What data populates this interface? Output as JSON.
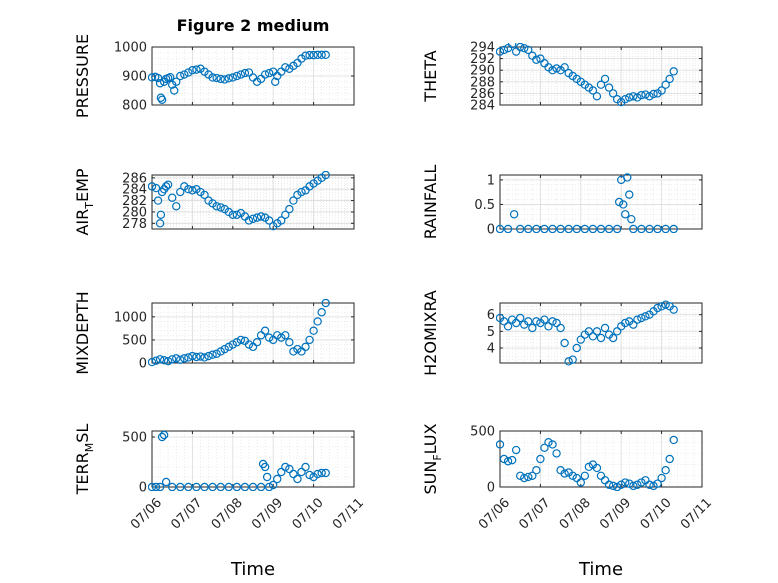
{
  "figure": {
    "title": "Figure 2 medium",
    "marker_color": "#0072bd"
  },
  "x_ticks": [
    "07/06",
    "07/07",
    "07/08",
    "07/09",
    "07/10",
    "07/11"
  ],
  "chart_data": [
    {
      "type": "scatter",
      "ylabel": "PRESSURE",
      "xlabel": "",
      "title": "Figure 2 medium",
      "xlim": [
        0,
        5
      ],
      "ylim": [
        800,
        1000
      ],
      "yticks": [
        800,
        900,
        1000
      ],
      "grid": true,
      "x": [
        0,
        0.08,
        0.15,
        0.2,
        0.22,
        0.25,
        0.3,
        0.35,
        0.4,
        0.45,
        0.5,
        0.55,
        0.6,
        0.7,
        0.8,
        0.9,
        1.0,
        1.1,
        1.2,
        1.3,
        1.4,
        1.5,
        1.6,
        1.7,
        1.8,
        1.9,
        2.0,
        2.1,
        2.2,
        2.3,
        2.4,
        2.5,
        2.6,
        2.7,
        2.8,
        2.9,
        3.0,
        3.05,
        3.1,
        3.2,
        3.3,
        3.4,
        3.5,
        3.6,
        3.7,
        3.8,
        3.9,
        4.0,
        4.1,
        4.2,
        4.3
      ],
      "y": [
        895,
        897,
        893,
        875,
        825,
        818,
        880,
        890,
        893,
        896,
        870,
        850,
        880,
        900,
        905,
        912,
        920,
        922,
        925,
        915,
        905,
        895,
        893,
        890,
        888,
        892,
        895,
        900,
        905,
        910,
        912,
        895,
        880,
        890,
        905,
        910,
        915,
        880,
        900,
        915,
        930,
        925,
        935,
        945,
        960,
        970,
        972,
        972,
        973,
        973,
        973
      ]
    },
    {
      "type": "scatter",
      "ylabel": "THETA",
      "xlabel": "",
      "xlim": [
        0,
        5
      ],
      "ylim": [
        284,
        294
      ],
      "yticks": [
        284,
        286,
        288,
        290,
        292,
        294
      ],
      "grid": true,
      "x": [
        0,
        0.1,
        0.2,
        0.3,
        0.4,
        0.5,
        0.6,
        0.7,
        0.8,
        0.9,
        1.0,
        1.1,
        1.2,
        1.3,
        1.4,
        1.5,
        1.6,
        1.7,
        1.8,
        1.9,
        2.0,
        2.1,
        2.2,
        2.3,
        2.4,
        2.5,
        2.6,
        2.7,
        2.8,
        2.9,
        3.0,
        3.1,
        3.2,
        3.3,
        3.4,
        3.5,
        3.6,
        3.7,
        3.8,
        3.9,
        4.0,
        4.1,
        4.2,
        4.3
      ],
      "y": [
        293.2,
        293.5,
        293.8,
        294.5,
        293.2,
        294.0,
        293.8,
        293.5,
        292.5,
        291.8,
        292.0,
        291.2,
        290.5,
        290.0,
        290.3,
        290.0,
        290.5,
        289.5,
        289.0,
        288.5,
        288.0,
        287.5,
        287.0,
        286.5,
        285.5,
        287.5,
        288.5,
        287.0,
        286.0,
        285.0,
        284.5,
        285.0,
        285.3,
        285.5,
        285.3,
        285.7,
        285.8,
        285.5,
        285.9,
        286.0,
        286.5,
        287.5,
        288.5,
        289.8
      ]
    },
    {
      "type": "scatter",
      "ylabel": "AIR_TEMP",
      "xlabel": "",
      "xlim": [
        0,
        5
      ],
      "ylim": [
        277,
        286.5
      ],
      "yticks": [
        278,
        280,
        282,
        284,
        286
      ],
      "grid": true,
      "x": [
        0,
        0.1,
        0.15,
        0.2,
        0.22,
        0.25,
        0.3,
        0.35,
        0.4,
        0.5,
        0.6,
        0.7,
        0.8,
        0.9,
        1.0,
        1.1,
        1.2,
        1.3,
        1.4,
        1.5,
        1.6,
        1.7,
        1.8,
        1.9,
        2.0,
        2.1,
        2.2,
        2.3,
        2.4,
        2.5,
        2.6,
        2.7,
        2.8,
        2.9,
        3.0,
        3.1,
        3.2,
        3.3,
        3.4,
        3.5,
        3.6,
        3.7,
        3.8,
        3.9,
        4.0,
        4.1,
        4.2,
        4.3
      ],
      "y": [
        284.5,
        284.2,
        282.0,
        278.0,
        279.5,
        283.5,
        284.0,
        284.5,
        284.8,
        282.5,
        281.0,
        283.5,
        284.5,
        284.0,
        283.8,
        284.0,
        283.5,
        283.0,
        282.0,
        281.5,
        281.0,
        280.8,
        280.5,
        280.0,
        279.5,
        279.5,
        279.8,
        279.2,
        278.5,
        278.8,
        279.0,
        279.2,
        279.0,
        278.5,
        277.5,
        278.0,
        278.5,
        279.5,
        280.5,
        282.0,
        283.0,
        283.5,
        283.8,
        284.5,
        285.0,
        285.5,
        286.0,
        286.5
      ]
    },
    {
      "type": "scatter",
      "ylabel": "RAINFALL",
      "xlabel": "",
      "xlim": [
        0,
        5
      ],
      "ylim": [
        0,
        1.1
      ],
      "yticks": [
        0,
        0.5,
        1
      ],
      "grid": true,
      "x": [
        0,
        0.2,
        0.35,
        0.5,
        0.7,
        0.9,
        1.1,
        1.3,
        1.5,
        1.7,
        1.9,
        2.1,
        2.3,
        2.5,
        2.7,
        2.9,
        2.95,
        3.0,
        3.05,
        3.1,
        3.15,
        3.2,
        3.25,
        3.3,
        3.5,
        3.7,
        3.9,
        4.1,
        4.3
      ],
      "y": [
        0,
        0,
        0.3,
        0,
        0,
        0,
        0,
        0,
        0,
        0,
        0,
        0,
        0,
        0,
        0,
        0,
        0.55,
        1.0,
        0.5,
        0.3,
        1.05,
        0.7,
        0.2,
        0,
        0,
        0,
        0,
        0,
        0
      ]
    },
    {
      "type": "scatter",
      "ylabel": "MIXDEPTH",
      "xlabel": "",
      "xlim": [
        0,
        5
      ],
      "ylim": [
        0,
        1300
      ],
      "yticks": [
        0,
        500,
        1000
      ],
      "grid": true,
      "x": [
        0,
        0.1,
        0.2,
        0.3,
        0.4,
        0.5,
        0.6,
        0.7,
        0.8,
        0.9,
        1.0,
        1.1,
        1.2,
        1.3,
        1.4,
        1.5,
        1.6,
        1.7,
        1.8,
        1.9,
        2.0,
        2.1,
        2.2,
        2.3,
        2.4,
        2.5,
        2.6,
        2.7,
        2.8,
        2.9,
        3.0,
        3.1,
        3.2,
        3.3,
        3.4,
        3.5,
        3.6,
        3.7,
        3.8,
        3.9,
        4.0,
        4.1,
        4.2,
        4.3
      ],
      "y": [
        20,
        50,
        80,
        60,
        40,
        80,
        100,
        70,
        100,
        120,
        150,
        130,
        140,
        120,
        150,
        180,
        200,
        250,
        300,
        350,
        400,
        450,
        500,
        480,
        400,
        350,
        450,
        600,
        700,
        550,
        500,
        600,
        550,
        600,
        450,
        250,
        300,
        250,
        350,
        500,
        700,
        900,
        1100,
        1300
      ]
    },
    {
      "type": "scatter",
      "ylabel": "H2OMIXRA",
      "xlabel": "",
      "xlim": [
        0,
        5
      ],
      "ylim": [
        3.1,
        6.7
      ],
      "yticks": [
        4,
        5,
        6
      ],
      "grid": true,
      "x": [
        0,
        0.1,
        0.2,
        0.3,
        0.4,
        0.5,
        0.6,
        0.7,
        0.8,
        0.9,
        1.0,
        1.1,
        1.2,
        1.3,
        1.4,
        1.5,
        1.6,
        1.7,
        1.8,
        1.9,
        2.0,
        2.1,
        2.2,
        2.3,
        2.4,
        2.5,
        2.6,
        2.7,
        2.8,
        2.9,
        3.0,
        3.1,
        3.2,
        3.3,
        3.4,
        3.5,
        3.6,
        3.7,
        3.8,
        3.9,
        4.0,
        4.1,
        4.2,
        4.3
      ],
      "y": [
        5.8,
        5.6,
        5.3,
        5.7,
        5.5,
        5.8,
        5.4,
        5.6,
        5.2,
        5.6,
        5.5,
        5.7,
        5.3,
        5.6,
        5.5,
        5.2,
        4.3,
        3.2,
        3.3,
        4.0,
        4.5,
        4.8,
        5.0,
        4.7,
        5.0,
        4.6,
        5.2,
        4.8,
        4.6,
        5.0,
        5.3,
        5.5,
        5.6,
        5.4,
        5.7,
        5.8,
        5.9,
        6.0,
        6.2,
        6.4,
        6.5,
        6.6,
        6.5,
        6.3
      ]
    },
    {
      "type": "scatter",
      "ylabel": "TERR_MSL",
      "xlabel": "Time",
      "xlim": [
        0,
        5
      ],
      "ylim": [
        0,
        560
      ],
      "yticks": [
        0,
        500
      ],
      "grid": true,
      "x": [
        0,
        0.1,
        0.2,
        0.25,
        0.3,
        0.35,
        0.5,
        0.7,
        0.9,
        1.1,
        1.3,
        1.5,
        1.7,
        1.9,
        2.1,
        2.3,
        2.5,
        2.7,
        2.75,
        2.8,
        2.85,
        2.9,
        3.0,
        3.1,
        3.2,
        3.3,
        3.4,
        3.5,
        3.6,
        3.7,
        3.8,
        3.9,
        4.0,
        4.1,
        4.2,
        4.3
      ],
      "y": [
        0,
        0,
        0,
        500,
        520,
        50,
        0,
        0,
        0,
        0,
        0,
        0,
        0,
        0,
        0,
        0,
        0,
        0,
        230,
        200,
        100,
        0,
        20,
        80,
        150,
        200,
        180,
        130,
        80,
        150,
        200,
        120,
        100,
        130,
        140,
        140
      ]
    },
    {
      "type": "scatter",
      "ylabel": "SUN_FLUX",
      "xlabel": "Time",
      "xlim": [
        0,
        5
      ],
      "ylim": [
        0,
        500
      ],
      "yticks": [
        0,
        500
      ],
      "grid": true,
      "x": [
        0,
        0.1,
        0.2,
        0.3,
        0.4,
        0.5,
        0.6,
        0.7,
        0.8,
        0.9,
        1.0,
        1.1,
        1.2,
        1.3,
        1.4,
        1.5,
        1.6,
        1.7,
        1.8,
        1.9,
        2.0,
        2.1,
        2.2,
        2.3,
        2.4,
        2.5,
        2.6,
        2.7,
        2.8,
        2.9,
        3.0,
        3.1,
        3.2,
        3.3,
        3.4,
        3.5,
        3.6,
        3.7,
        3.8,
        3.9,
        4.0,
        4.1,
        4.2,
        4.3
      ],
      "y": [
        380,
        250,
        230,
        240,
        330,
        100,
        80,
        90,
        100,
        150,
        250,
        350,
        400,
        380,
        300,
        150,
        120,
        130,
        100,
        80,
        40,
        100,
        180,
        200,
        170,
        100,
        60,
        20,
        10,
        0,
        20,
        40,
        30,
        10,
        20,
        40,
        60,
        20,
        10,
        30,
        80,
        150,
        250,
        420
      ]
    }
  ]
}
